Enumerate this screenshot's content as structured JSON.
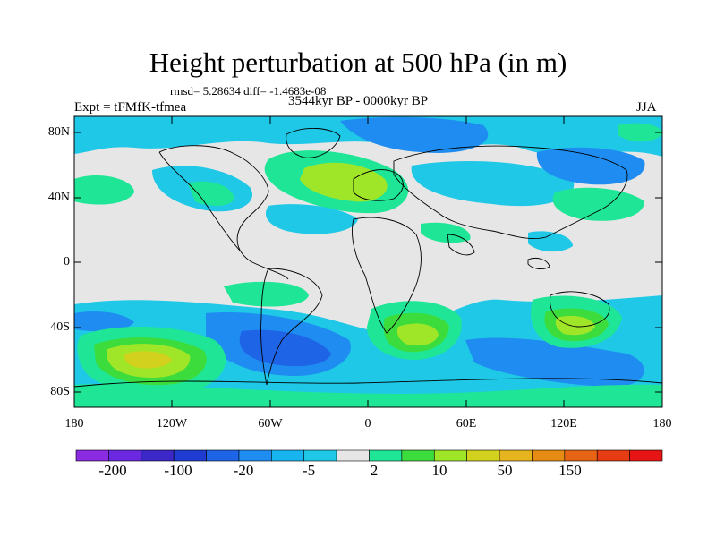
{
  "title": "Height perturbation at 500 hPa (in m)",
  "stats_line": "rmsd= 5.28634 diff= -1.4683e-08",
  "left_label": "Expt = tFMfK-tfmea",
  "center_label": "3544kyr BP - 0000kyr BP",
  "right_label": "JJA",
  "y_ticks": [
    "80N",
    "40N",
    "0",
    "40S",
    "80S"
  ],
  "x_ticks": [
    "180",
    "120W",
    "60W",
    "0",
    "60E",
    "120E",
    "180"
  ],
  "colorbar": {
    "colors": [
      "#8a2be2",
      "#6a28e0",
      "#3c28c8",
      "#1e3cd2",
      "#1e64e6",
      "#1e8cf0",
      "#18b4f0",
      "#1ec8e6",
      "#e6e6e6",
      "#1ee696",
      "#3cdc3c",
      "#a0e628",
      "#d2d21e",
      "#e6b41e",
      "#e68c14",
      "#e66414",
      "#e63c14",
      "#e61414"
    ],
    "labels": [
      "-200",
      "-100",
      "-20",
      "-5",
      "2",
      "10",
      "50",
      "150"
    ]
  },
  "map_colors": {
    "ocean_bg": "#e6e6e6",
    "cyan": "#1ec8e6",
    "lightblue": "#1e8cf0",
    "blue": "#1e64e6",
    "darkblue": "#1e3cd2",
    "green": "#1ee696",
    "brightgreen": "#3cdc3c",
    "yellowgreen": "#a0e628",
    "yellow": "#d2d21e",
    "coast": "#000000"
  }
}
